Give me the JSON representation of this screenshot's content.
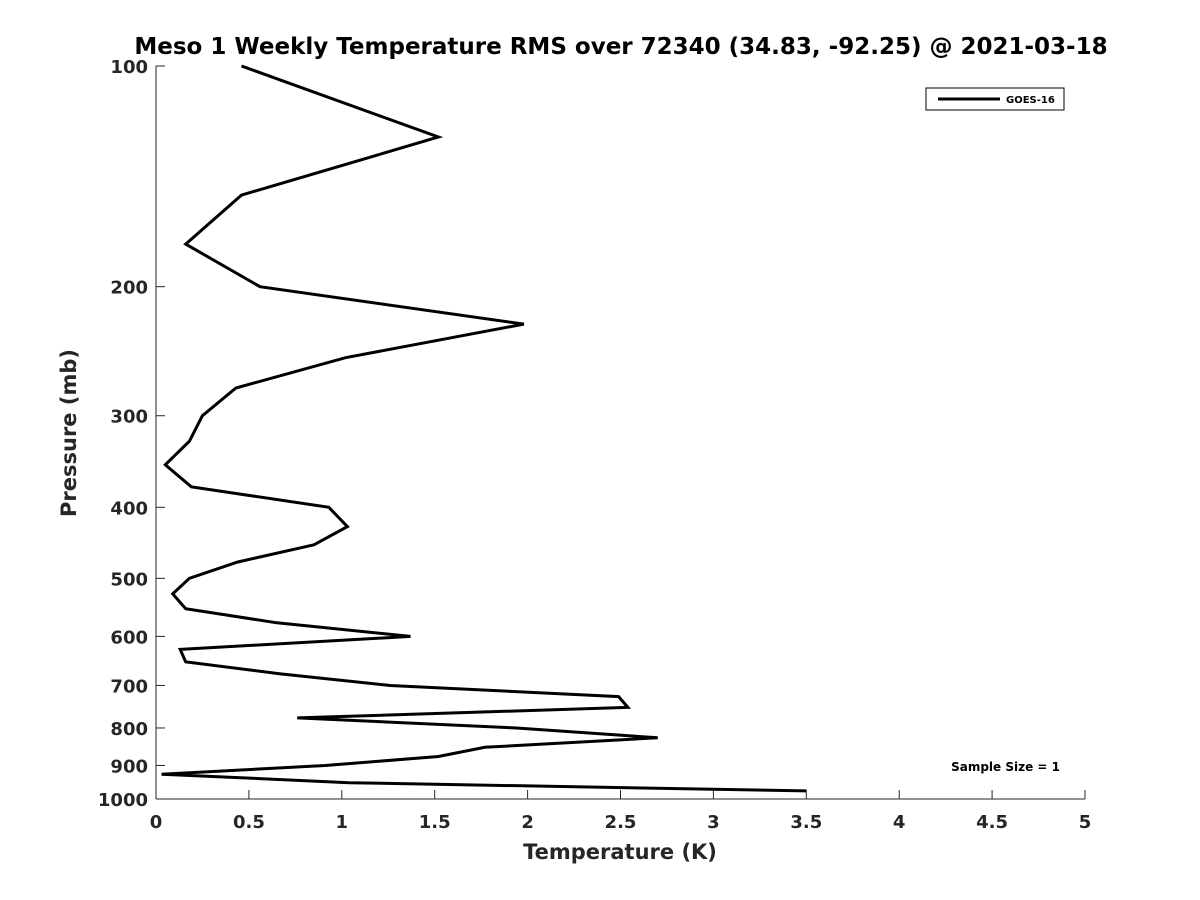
{
  "chart_data": {
    "type": "line",
    "title": "Meso 1 Weekly Temperature RMS over 72340 (34.83, -92.25) @ 2021-03-18",
    "xlabel": "Temperature (K)",
    "ylabel": "Pressure (mb)",
    "xlim": [
      0,
      5
    ],
    "ylim": [
      1000,
      100
    ],
    "y_scale": "log",
    "y_reversed": true,
    "grid": false,
    "legend_placement": "top-right",
    "x_ticks": [
      "0",
      "0.5",
      "1",
      "1.5",
      "2",
      "2.5",
      "3",
      "3.5",
      "4",
      "4.5",
      "5"
    ],
    "y_ticks": [
      "100",
      "200",
      "300",
      "400",
      "500",
      "600",
      "700",
      "800",
      "900",
      "1000"
    ],
    "series": [
      {
        "name": "GOES-16",
        "color": "#000000",
        "points": [
          {
            "x": 0.46,
            "p": 100
          },
          {
            "x": 1.52,
            "p": 125
          },
          {
            "x": 0.46,
            "p": 150
          },
          {
            "x": 0.16,
            "p": 175
          },
          {
            "x": 0.56,
            "p": 200
          },
          {
            "x": 1.98,
            "p": 225
          },
          {
            "x": 1.02,
            "p": 250
          },
          {
            "x": 0.43,
            "p": 275
          },
          {
            "x": 0.25,
            "p": 300
          },
          {
            "x": 0.18,
            "p": 325
          },
          {
            "x": 0.05,
            "p": 350
          },
          {
            "x": 0.19,
            "p": 375
          },
          {
            "x": 0.93,
            "p": 400
          },
          {
            "x": 1.03,
            "p": 425
          },
          {
            "x": 0.85,
            "p": 450
          },
          {
            "x": 0.44,
            "p": 475
          },
          {
            "x": 0.18,
            "p": 500
          },
          {
            "x": 0.09,
            "p": 525
          },
          {
            "x": 0.16,
            "p": 550
          },
          {
            "x": 0.65,
            "p": 575
          },
          {
            "x": 1.37,
            "p": 600
          },
          {
            "x": 0.13,
            "p": 625
          },
          {
            "x": 0.16,
            "p": 650
          },
          {
            "x": 0.67,
            "p": 675
          },
          {
            "x": 1.26,
            "p": 700
          },
          {
            "x": 2.49,
            "p": 725
          },
          {
            "x": 2.54,
            "p": 750
          },
          {
            "x": 0.76,
            "p": 775
          },
          {
            "x": 1.94,
            "p": 800
          },
          {
            "x": 2.7,
            "p": 825
          },
          {
            "x": 1.77,
            "p": 850
          },
          {
            "x": 1.52,
            "p": 875
          },
          {
            "x": 0.91,
            "p": 900
          },
          {
            "x": 0.03,
            "p": 925
          },
          {
            "x": 1.04,
            "p": 950
          },
          {
            "x": 3.5,
            "p": 975
          }
        ]
      }
    ],
    "annotations": [
      {
        "text": "Sample Size = 1"
      }
    ]
  },
  "legend": {
    "items": [
      {
        "label": "GOES-16",
        "color": "#000000"
      }
    ]
  }
}
